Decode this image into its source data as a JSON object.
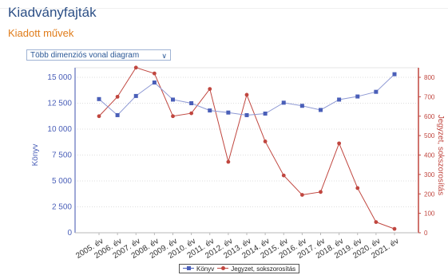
{
  "header": {
    "title": "Kiadványfajták",
    "subtitle": "Kiadott művek"
  },
  "chart_selector": {
    "value": "Több dimenziós vonal diagram"
  },
  "colors": {
    "series1": "#4a5fb8",
    "series2": "#c0463f"
  },
  "chart_data": {
    "type": "line",
    "categories": [
      "2005. év",
      "2006. év",
      "2007. év",
      "2008. év",
      "2009. év",
      "2010. év",
      "2011. év",
      "2012. év",
      "2013. év",
      "2014. év",
      "2015. év",
      "2016. év",
      "2017. év",
      "2018. év",
      "2019. év",
      "2020. év",
      "2021. év"
    ],
    "series": [
      {
        "name": "Könyv",
        "axis": "left",
        "values": [
          12900,
          11350,
          13200,
          14500,
          12850,
          12500,
          11800,
          11600,
          11350,
          11500,
          12550,
          12250,
          11850,
          12850,
          13150,
          13600,
          15300
        ]
      },
      {
        "name": "Jegyzet, sokszorosítás",
        "axis": "right",
        "values": [
          600,
          700,
          850,
          820,
          600,
          615,
          740,
          365,
          710,
          470,
          295,
          195,
          210,
          460,
          230,
          55,
          20
        ]
      }
    ],
    "ylabel": "Könyv",
    "y2label": "Jegyzet, sokszorosítás",
    "ylim": [
      0,
      15000
    ],
    "y2lim": [
      0,
      800
    ],
    "yticks": [
      "0",
      "2 500",
      "5 000",
      "7 500",
      "10 000",
      "12 500",
      "15 000"
    ],
    "y2ticks": [
      "0",
      "100",
      "200",
      "300",
      "400",
      "500",
      "600",
      "700",
      "800"
    ],
    "grid": true,
    "legend_position": "bottom"
  }
}
